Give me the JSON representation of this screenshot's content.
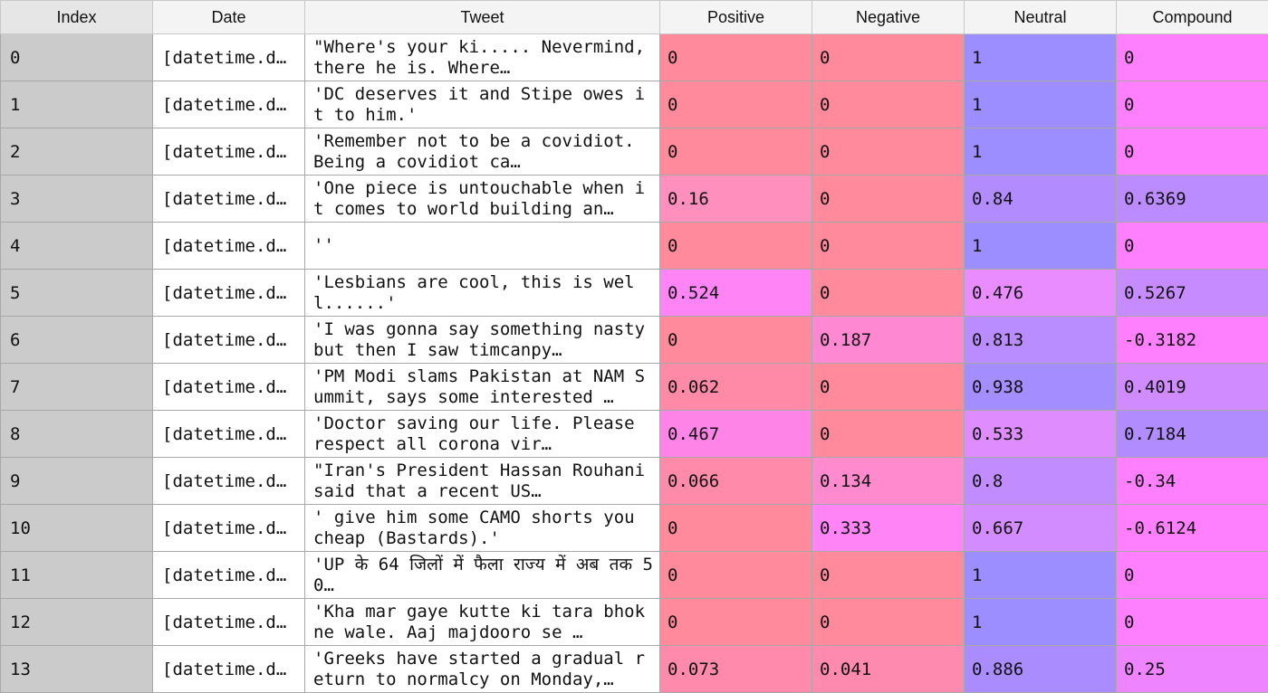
{
  "columns": [
    "Index",
    "Date",
    "Tweet",
    "Positive",
    "Negative",
    "Neutral",
    "Compound"
  ],
  "rows": [
    {
      "index": "0",
      "date": "[datetime.d…",
      "tweet": "\"Where's your ki..... Nevermind, there he is. Where…",
      "positive": "0",
      "negative": "0",
      "neutral": "1",
      "compound": "0"
    },
    {
      "index": "1",
      "date": "[datetime.d…",
      "tweet": "'DC deserves it and Stipe owes it to him.'",
      "positive": "0",
      "negative": "0",
      "neutral": "1",
      "compound": "0"
    },
    {
      "index": "2",
      "date": "[datetime.d…",
      "tweet": "'Remember not to be a covidiot. Being a covidiot ca…",
      "positive": "0",
      "negative": "0",
      "neutral": "1",
      "compound": "0"
    },
    {
      "index": "3",
      "date": "[datetime.d…",
      "tweet": "'One piece is untouchable when it comes to world building an…",
      "positive": "0.16",
      "negative": "0",
      "neutral": "0.84",
      "compound": "0.6369"
    },
    {
      "index": "4",
      "date": "[datetime.d…",
      "tweet": "''",
      "positive": "0",
      "negative": "0",
      "neutral": "1",
      "compound": "0"
    },
    {
      "index": "5",
      "date": "[datetime.d…",
      "tweet": "'Lesbians are cool, this is well......'",
      "positive": "0.524",
      "negative": "0",
      "neutral": "0.476",
      "compound": "0.5267"
    },
    {
      "index": "6",
      "date": "[datetime.d…",
      "tweet": "'I was gonna say something nasty but then I saw timcanpy…",
      "positive": "0",
      "negative": "0.187",
      "neutral": "0.813",
      "compound": "-0.3182"
    },
    {
      "index": "7",
      "date": "[datetime.d…",
      "tweet": "'PM Modi slams Pakistan at NAM Summit, says some interested …",
      "positive": "0.062",
      "negative": "0",
      "neutral": "0.938",
      "compound": "0.4019"
    },
    {
      "index": "8",
      "date": "[datetime.d…",
      "tweet": "'Doctor saving our life. Please respect all corona vir…",
      "positive": "0.467",
      "negative": "0",
      "neutral": "0.533",
      "compound": "0.7184"
    },
    {
      "index": "9",
      "date": "[datetime.d…",
      "tweet": "\"Iran's President Hassan Rouhani said that a recent US…",
      "positive": "0.066",
      "negative": "0.134",
      "neutral": "0.8",
      "compound": "-0.34"
    },
    {
      "index": "10",
      "date": "[datetime.d…",
      "tweet": "' give him some CAMO shorts you cheap (Bastards).'",
      "positive": "0",
      "negative": "0.333",
      "neutral": "0.667",
      "compound": "-0.6124"
    },
    {
      "index": "11",
      "date": "[datetime.d…",
      "tweet": "'UP  के 64 जिलों में फैला  राज्य में अब तक 50…",
      "positive": "0",
      "negative": "0",
      "neutral": "1",
      "compound": "0"
    },
    {
      "index": "12",
      "date": "[datetime.d…",
      "tweet": "'Kha mar gaye kutte ki tara bhokne wale. Aaj majdooro se …",
      "positive": "0",
      "negative": "0",
      "neutral": "1",
      "compound": "0"
    },
    {
      "index": "13",
      "date": "[datetime.d…",
      "tweet": "'Greeks have started a gradual return to normalcy on Monday,…",
      "positive": "0.073",
      "negative": "0.041",
      "neutral": "0.886",
      "compound": "0.25"
    }
  ],
  "colors": {
    "header_bg": "#f4f4f4",
    "index_bg": "#cbcbcb",
    "salmon": "#ff8a9b",
    "magenta": "#ff80ff",
    "violet": "#a08cff",
    "lavender": "#c48cff"
  },
  "cell_colors": {
    "positive": [
      "#ff8a9b",
      "#ff8a9b",
      "#ff8a9b",
      "#ff90bd",
      "#ff8a9b",
      "#ff84f6",
      "#ff8a9b",
      "#ff8aa8",
      "#ff84e8",
      "#ff8aa9",
      "#ff8a9b",
      "#ff8a9b",
      "#ff8a9b",
      "#ff8aab"
    ],
    "negative": [
      "#ff8a9b",
      "#ff8a9b",
      "#ff8a9b",
      "#ff8a9b",
      "#ff8a9b",
      "#ff8a9b",
      "#ff88d2",
      "#ff8a9b",
      "#ff8a9b",
      "#ff8acd",
      "#ff84f6",
      "#ff8a9b",
      "#ff8a9b",
      "#ff8ab0"
    ],
    "neutral": [
      "#9c8eff",
      "#9c8eff",
      "#9c8eff",
      "#b28cff",
      "#9c8eff",
      "#e88cff",
      "#b98cff",
      "#a38dff",
      "#de8cff",
      "#c08cff",
      "#d38cff",
      "#9c8eff",
      "#9c8eff",
      "#ab8cff"
    ],
    "compound": [
      "#ff80ff",
      "#ff80ff",
      "#ff80ff",
      "#bb8cff",
      "#ff80ff",
      "#c68cff",
      "#ff80ff",
      "#d08cff",
      "#b08cff",
      "#ff80ff",
      "#ff80ff",
      "#ff80ff",
      "#ff80ff",
      "#ee84ff"
    ]
  }
}
